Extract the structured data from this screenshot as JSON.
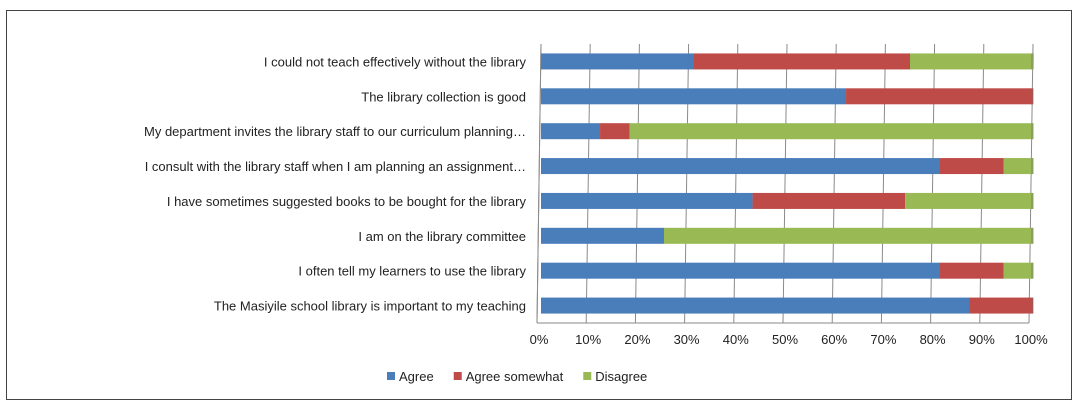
{
  "chart_data": {
    "type": "bar",
    "orientation": "horizontal",
    "stacked": "percent",
    "categories": [
      "I could not teach effectively without the library",
      "The library collection is good",
      "My department invites the library staff to our curriculum planning…",
      "I consult with the library staff when I am planning an assignment…",
      "I have sometimes suggested books to be bought for the library",
      "I am on the library committee",
      "I often tell my learners to use the library",
      "The Masiyile school library is important to my teaching"
    ],
    "series": [
      {
        "name": "Agree",
        "color": "#4a7ebb",
        "values": [
          31,
          62,
          12,
          81,
          43,
          25,
          81,
          87
        ]
      },
      {
        "name": "Agree somewhat",
        "color": "#be4b48",
        "values": [
          44,
          38,
          6,
          13,
          31,
          0,
          13,
          13
        ]
      },
      {
        "name": "Disagree",
        "color": "#98b954",
        "values": [
          25,
          0,
          82,
          6,
          26,
          75,
          6,
          0
        ]
      }
    ],
    "x_ticks": [
      "0%",
      "10%",
      "20%",
      "30%",
      "40%",
      "50%",
      "60%",
      "70%",
      "80%",
      "90%",
      "100%"
    ],
    "xlim": [
      0,
      100
    ],
    "grid": "vertical",
    "legend": "bottom",
    "title": "",
    "xlabel": "",
    "ylabel": ""
  }
}
